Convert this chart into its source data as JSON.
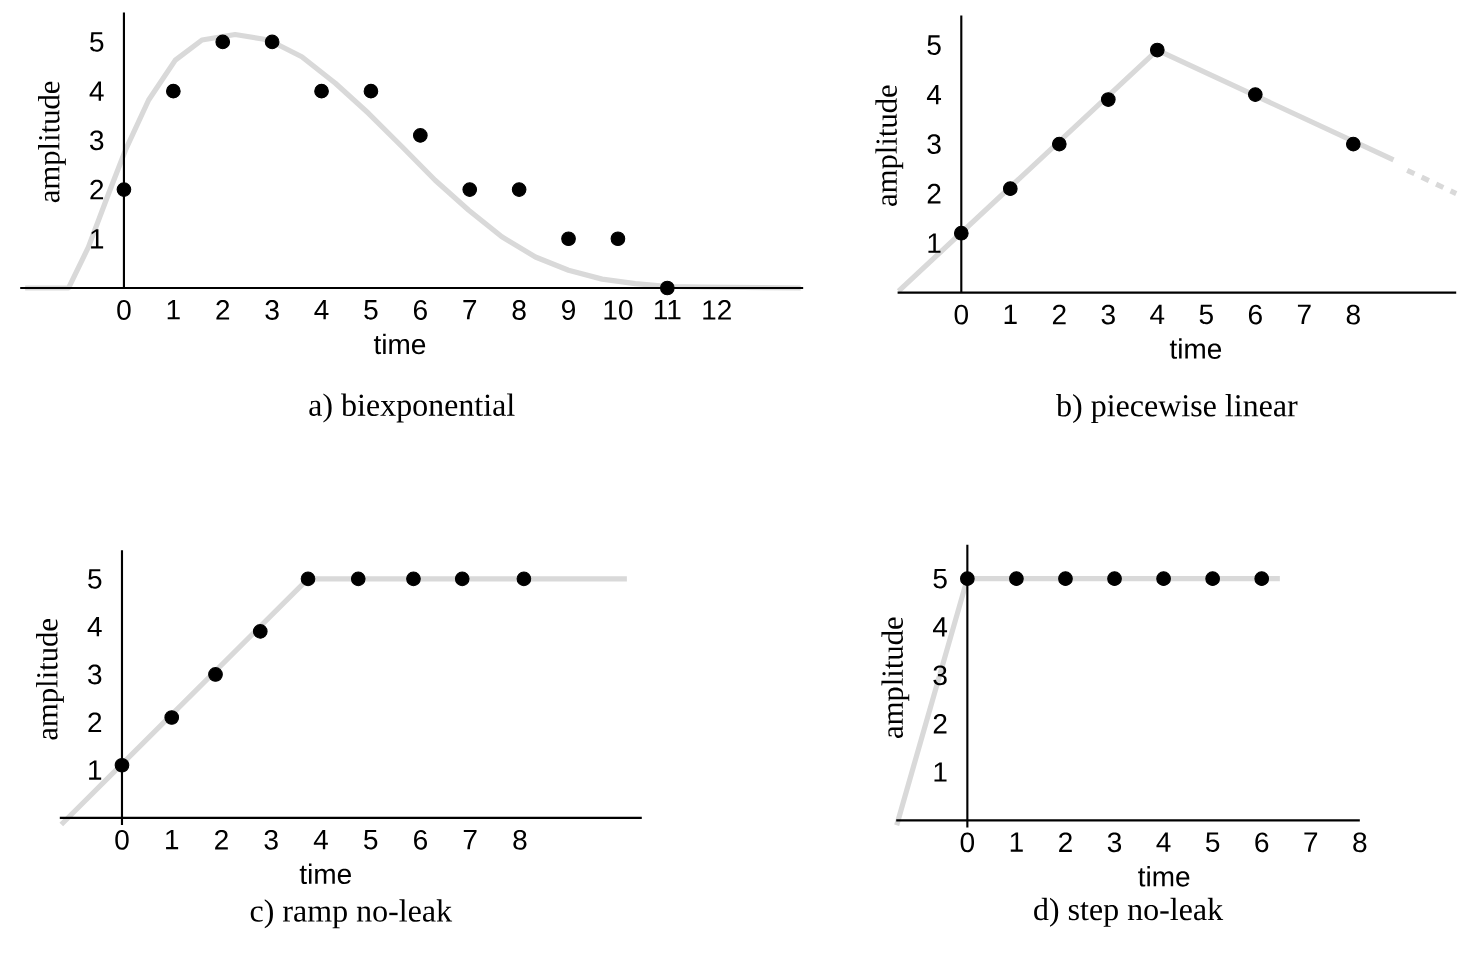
{
  "chart_data": [
    {
      "type": "scatter",
      "title": "a) biexponential",
      "xlabel": "time",
      "ylabel": "amplitude",
      "xlim": [
        -2.1,
        13.75
      ],
      "ylim": [
        0,
        5.6
      ],
      "xticks": [
        0,
        1,
        2,
        3,
        4,
        5,
        6,
        7,
        8,
        9,
        10,
        11,
        12
      ],
      "yticks": [
        1,
        2,
        3,
        4,
        5
      ],
      "series": [
        {
          "type": "line",
          "color": "#d9d9d9",
          "marker": "none",
          "x": [
            -2.0,
            -1.12,
            -0.72,
            -0.31,
            0.03,
            0.5,
            1.04,
            1.58,
            2.25,
            2.93,
            3.6,
            4.28,
            4.95,
            5.63,
            6.3,
            6.98,
            7.65,
            8.33,
            9.0,
            9.68,
            10.35,
            11.03,
            11.7,
            13.7
          ],
          "values": [
            0,
            0,
            0.83,
            1.92,
            2.8,
            3.82,
            4.63,
            5.04,
            5.15,
            5.04,
            4.7,
            4.16,
            3.55,
            2.87,
            2.19,
            1.58,
            1.04,
            0.63,
            0.36,
            0.18,
            0.09,
            0.03,
            0.02,
            0
          ]
        },
        {
          "color": "#000000",
          "marker": "circle",
          "x": [
            0,
            1,
            2,
            3,
            4,
            5,
            6,
            7,
            8,
            9,
            10,
            11
          ],
          "values": [
            2,
            4,
            5,
            5,
            4,
            4,
            3.1,
            2,
            2,
            1,
            1,
            0
          ]
        }
      ]
    },
    {
      "type": "scatter",
      "title": "b)  piecewise linear",
      "xlabel": "time",
      "ylabel": "amplitude",
      "xlim": [
        -1.3,
        10.1
      ],
      "ylim": [
        0,
        5.6
      ],
      "xticks": [
        0,
        1,
        2,
        3,
        4,
        5,
        6,
        7,
        8
      ],
      "yticks": [
        1,
        2,
        3,
        4,
        5
      ],
      "series": [
        {
          "type": "line",
          "color": "#d9d9d9",
          "marker": "none",
          "line_style": "solid",
          "x": [
            -1.28,
            4,
            8.82
          ],
          "values": [
            0.03,
            4.9,
            2.68
          ]
        },
        {
          "type": "line",
          "color": "#d9d9d9",
          "marker": "none",
          "line_style": "dashed",
          "x": [
            9.1,
            10.1
          ],
          "values": [
            2.47,
            2.0
          ]
        },
        {
          "color": "#000000",
          "marker": "circle",
          "x": [
            0,
            1,
            2,
            3,
            4,
            6,
            8
          ],
          "values": [
            1.2,
            2.1,
            3,
            3.9,
            4.9,
            4,
            3
          ]
        }
      ]
    },
    {
      "type": "scatter",
      "title": "c)  ramp no-leak",
      "xlabel": "time",
      "ylabel": "amplitude",
      "xlim": [
        -1.25,
        10.45
      ],
      "ylim": [
        -0.15,
        5.6
      ],
      "xticks": [
        0,
        1,
        2,
        3,
        4,
        5,
        6,
        7,
        8
      ],
      "yticks": [
        1,
        2,
        3,
        4,
        5
      ],
      "series": [
        {
          "type": "line",
          "color": "#d9d9d9",
          "marker": "none",
          "x": [
            -1.22,
            3.74,
            10.15
          ],
          "values": [
            -0.14,
            5,
            5
          ]
        },
        {
          "color": "#000000",
          "marker": "circle",
          "x": [
            0,
            1,
            1.88,
            2.78,
            3.74,
            4.75,
            5.86,
            6.84,
            8.08
          ],
          "values": [
            1.1,
            2.1,
            3,
            3.9,
            5,
            5,
            5,
            5,
            5
          ]
        }
      ]
    },
    {
      "type": "scatter",
      "title": "d)  step no-leak",
      "xlabel": "time",
      "ylabel": "amplitude",
      "xlim": [
        -1.45,
        8.0
      ],
      "ylim": [
        -0.15,
        5.7
      ],
      "xticks": [
        0,
        1,
        2,
        3,
        4,
        5,
        6,
        7,
        8
      ],
      "yticks": [
        1,
        2,
        3,
        4,
        5
      ],
      "series": [
        {
          "type": "line",
          "color": "#d9d9d9",
          "marker": "none",
          "x": [
            -1.44,
            0,
            6.37
          ],
          "values": [
            -0.1,
            5,
            5
          ]
        },
        {
          "color": "#000000",
          "marker": "circle",
          "x": [
            0,
            1,
            2,
            3,
            4,
            5,
            6
          ],
          "values": [
            5,
            5,
            5,
            5,
            5,
            5,
            5
          ]
        }
      ]
    }
  ]
}
